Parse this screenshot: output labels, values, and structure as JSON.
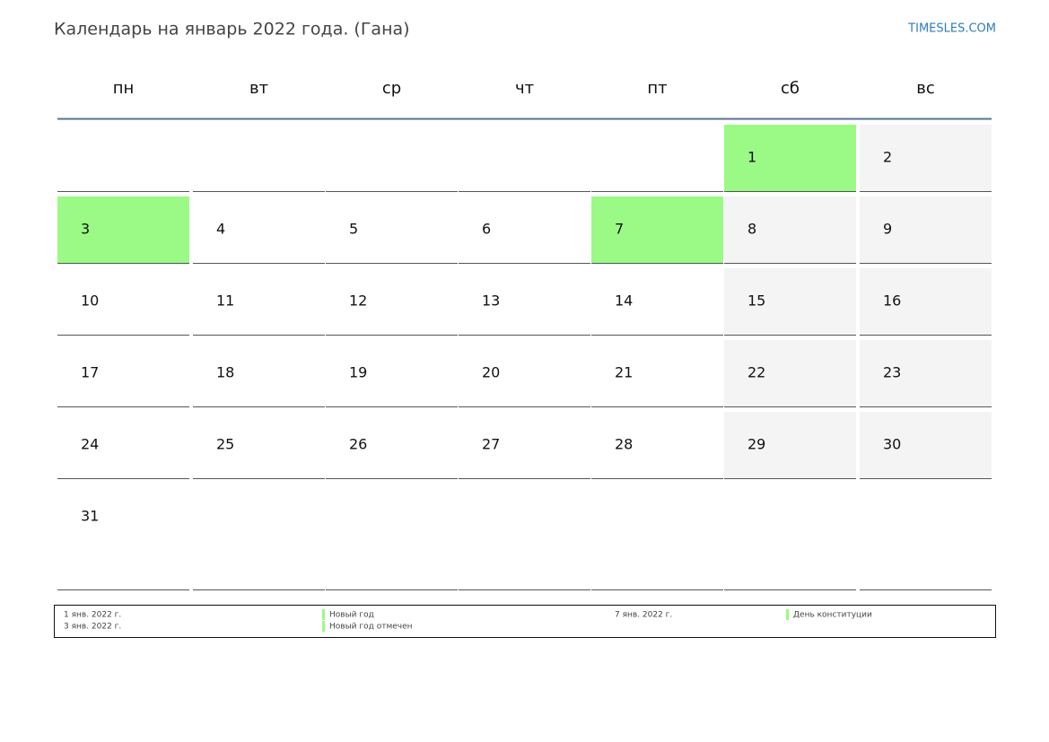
{
  "header": {
    "title": "Календарь на январь 2022 года. (Гана)",
    "site": "TIMESLES.COM"
  },
  "weekdays": [
    "пн",
    "вт",
    "ср",
    "чт",
    "пт",
    "сб",
    "вс"
  ],
  "weeks": [
    [
      null,
      null,
      null,
      null,
      null,
      "1",
      "2"
    ],
    [
      "3",
      "4",
      "5",
      "6",
      "7",
      "8",
      "9"
    ],
    [
      "10",
      "11",
      "12",
      "13",
      "14",
      "15",
      "16"
    ],
    [
      "17",
      "18",
      "19",
      "20",
      "21",
      "22",
      "23"
    ],
    [
      "24",
      "25",
      "26",
      "27",
      "28",
      "29",
      "30"
    ],
    [
      "31",
      null,
      null,
      null,
      null,
      null,
      null
    ]
  ],
  "holidays": [
    {
      "date": "1 янв. 2022 г.",
      "name": "Новый год"
    },
    {
      "date": "3 янв. 2022 г.",
      "name": "Новый год отмечен"
    },
    {
      "date": "7 янв. 2022 г.",
      "name": "День конституции"
    }
  ],
  "holiday_color": "#9afa85",
  "weekend_color": "#f4f4f4",
  "header_line_color": "#5a7396"
}
